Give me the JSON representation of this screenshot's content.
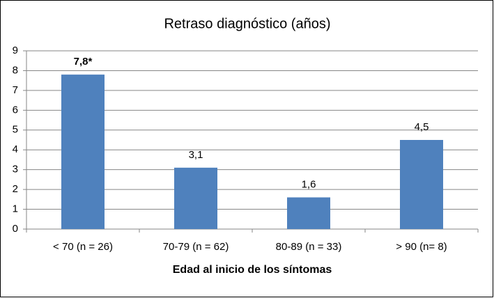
{
  "chart_data": {
    "type": "bar",
    "title": "Retraso diagnóstico (años)",
    "x_label": "Edad al inicio de los síntomas",
    "categories": [
      "< 70 (n = 26)",
      "70-79 (n = 62)",
      "80-89 (n = 33)",
      "> 90 (n= 8)"
    ],
    "values": [
      7.8,
      3.1,
      1.6,
      4.5
    ],
    "value_labels": [
      "7,8*",
      "3,1",
      "1,6",
      "4,5"
    ],
    "value_label_bold": [
      true,
      false,
      false,
      false
    ],
    "color": "#4f81bd",
    "ylim": [
      0,
      9
    ],
    "yticks": [
      0,
      1,
      2,
      3,
      4,
      5,
      6,
      7,
      8,
      9
    ],
    "grid": true
  }
}
